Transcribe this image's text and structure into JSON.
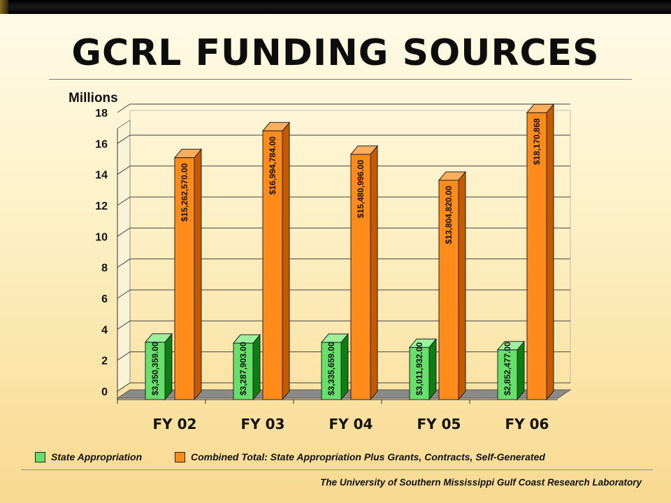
{
  "title": "GCRL FUNDING SOURCES",
  "footer": "The University of Southern Mississippi  Gulf Coast Research Laboratory",
  "colors": {
    "state": "#66e06a",
    "state_side": "#0f7d12",
    "state_top": "#9cf29c",
    "combined": "#ff8c1a",
    "combined_side": "#c45a00",
    "combined_top": "#ffae5c"
  },
  "chart_data": {
    "type": "bar",
    "ylabel": "Millions",
    "ylim": [
      0,
      18
    ],
    "yticks": [
      0,
      2,
      4,
      6,
      8,
      10,
      12,
      14,
      16,
      18
    ],
    "grid": true,
    "legend_position": "bottom",
    "categories": [
      "FY 02",
      "FY 03",
      "FY 04",
      "FY 05",
      "FY 06"
    ],
    "series": [
      {
        "name": "State Appropriation",
        "values": [
          3.350359,
          3.287903,
          3.335659,
          3.011932,
          2.852477
        ],
        "labels": [
          "$3,350,359.00",
          "$3,287,903.00",
          "$3,335,659.00",
          "$3,011,932.00",
          "$2,852,477.00"
        ]
      },
      {
        "name": "Combined Total: State Appropriation Plus Grants, Contracts, Self-Generated",
        "values": [
          15.26257,
          16.994784,
          15.480996,
          13.80482,
          18.170868
        ],
        "labels": [
          "$15,262,570.00",
          "$16,994,784.00",
          "$15,480,996.00",
          "$13,804,820.00",
          "$18,170,868"
        ]
      }
    ]
  }
}
